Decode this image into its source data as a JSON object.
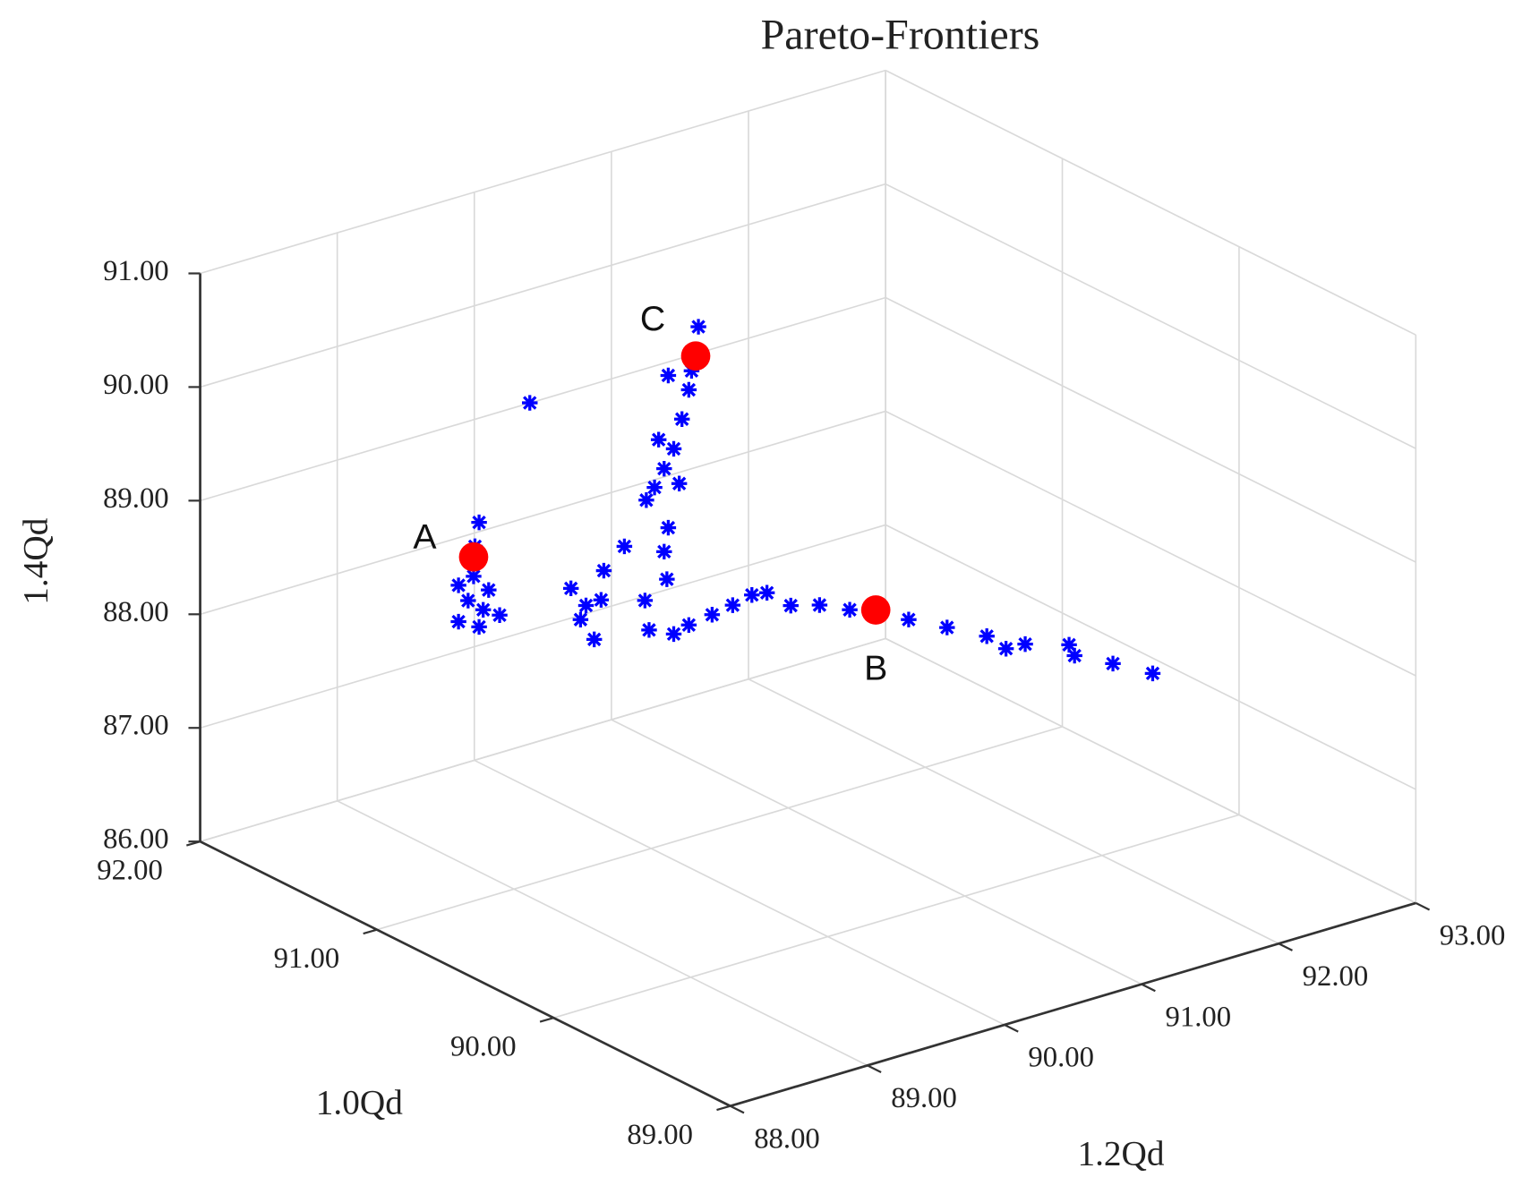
{
  "chart_data": {
    "type": "scatter3d",
    "title": "Pareto-Frontiers",
    "xlabel": "1.0Qd",
    "ylabel": "1.2Qd",
    "zlabel": "1.4Qd",
    "xlim": [
      89,
      92
    ],
    "ylim": [
      88,
      93
    ],
    "zlim": [
      86,
      91
    ],
    "xticks": [
      {
        "value": 89,
        "label": "89.00"
      },
      {
        "value": 90,
        "label": "90.00"
      },
      {
        "value": 91,
        "label": "91.00"
      },
      {
        "value": 92,
        "label": "92.00"
      }
    ],
    "yticks": [
      {
        "value": 88,
        "label": "88.00"
      },
      {
        "value": 89,
        "label": "89.00"
      },
      {
        "value": 90,
        "label": "90.00"
      },
      {
        "value": 91,
        "label": "91.00"
      },
      {
        "value": 92,
        "label": "92.00"
      },
      {
        "value": 93,
        "label": "93.00"
      }
    ],
    "zticks": [
      {
        "value": 86,
        "label": "86.00"
      },
      {
        "value": 87,
        "label": "87.00"
      },
      {
        "value": 88,
        "label": "88.00"
      },
      {
        "value": 89,
        "label": "89.00"
      },
      {
        "value": 90,
        "label": "90.00"
      },
      {
        "value": 91,
        "label": "91.00"
      }
    ],
    "grid": true,
    "series": [
      {
        "color": "#0000ff",
        "marker": "asterisk",
        "x": [
          91.5,
          91.5,
          91.5,
          91.5,
          91.5,
          91.5,
          91.5,
          91.5,
          91.5,
          91.5,
          91.5,
          91.5,
          91.5,
          91.5,
          91.5,
          91.5,
          91.5,
          91.5,
          91.5,
          91.5,
          91.5,
          91.5,
          91.5,
          91.5,
          91.5,
          91.5,
          91.5,
          91.5,
          91.5,
          91.5,
          91.5,
          91.5,
          91.5,
          91.5,
          91.5,
          91.5,
          91.5,
          91.5,
          91.5,
          91.5,
          90,
          90,
          90,
          90,
          90,
          90,
          90,
          90,
          90,
          90,
          90,
          90,
          90
        ],
        "y": [
          89.39,
          89.36,
          89.35,
          89.24,
          89.31,
          89.42,
          89.24,
          89.39,
          89.54,
          89.46,
          89.76,
          90.06,
          90.17,
          90.13,
          90.23,
          90.28,
          90.3,
          90.45,
          90.76,
          90.6,
          90.99,
          90.92,
          90.77,
          90.87,
          90.81,
          90.74,
          90.67,
          90.61,
          90.85,
          90.77,
          90.74,
          90.94,
          90.7,
          90.63,
          90.81,
          90.92,
          91.09,
          91.24,
          91.38,
          91.49,
          89.73,
          89.94,
          90.16,
          90.35,
          90.59,
          90.87,
          91.16,
          91.44,
          91.76,
          91.8,
          92.08,
          92.37,
          91.3
        ],
        "z": [
          88.7,
          88.5,
          88.24,
          88.2,
          88.04,
          87.92,
          87.88,
          87.78,
          87.83,
          88.08,
          89.62,
          87.88,
          87.69,
          87.58,
          87.37,
          87.7,
          87.95,
          88.11,
          87.71,
          87.58,
          89.85,
          89.32,
          89.5,
          89.08,
          88.84,
          88.69,
          88.55,
          88.46,
          88.52,
          88.16,
          87.96,
          89.48,
          88.96,
          87.31,
          87.21,
          87.25,
          87.28,
          87.31,
          87.35,
          87.33,
          89.01,
          88.94,
          88.82,
          88.75,
          88.58,
          88.41,
          88.23,
          88.06,
          87.94,
          87.83,
          87.66,
          87.47,
          88.07
        ]
      },
      {
        "color": "#ff0000",
        "marker": "circle",
        "x": [
          91.5,
          90,
          91.5
        ],
        "y": [
          89.35,
          90.35,
          90.97
        ],
        "z": [
          88.41,
          88.75,
          89.6
        ],
        "labels": [
          "A",
          "B",
          "C"
        ]
      }
    ]
  }
}
